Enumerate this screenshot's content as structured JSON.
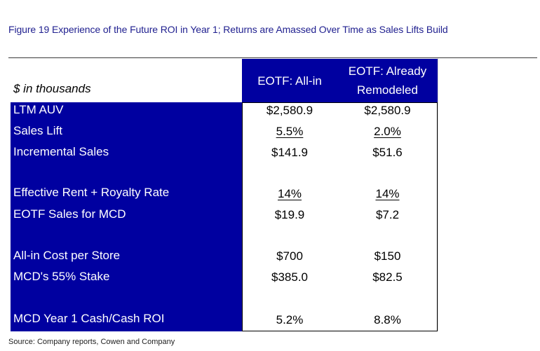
{
  "title": "Figure 19 Experience of the Future ROI in Year 1; Returns are Amassed Over Time as Sales Lifts Build",
  "table": {
    "unit_label": "$ in thousands",
    "col1_header": "EOTF: All-in",
    "col2_header_line1": "EOTF: Already",
    "col2_header_line2": "Remodeled",
    "rows": [
      {
        "label": "LTM AUV",
        "all_in": "$2,580.9",
        "remodeled": "$2,580.9"
      },
      {
        "label": "Sales Lift",
        "all_in": "5.5%",
        "remodeled": "2.0%"
      },
      {
        "label": "Incremental Sales",
        "all_in": "$141.9",
        "remodeled": "$51.6"
      },
      {
        "label": "Effective Rent + Royalty Rate",
        "all_in": "14%",
        "remodeled": "14%"
      },
      {
        "label": "EOTF Sales for MCD",
        "all_in": "$19.9",
        "remodeled": "$7.2"
      },
      {
        "label": "All-in Cost per Store",
        "all_in": "$700",
        "remodeled": "$150"
      },
      {
        "label": "MCD's 55% Stake",
        "all_in": "$385.0",
        "remodeled": "$82.5"
      },
      {
        "label": "MCD Year 1 Cash/Cash ROI",
        "all_in": "5.2%",
        "remodeled": "8.8%"
      }
    ]
  },
  "source": "Source: Company reports, Cowen and Company"
}
